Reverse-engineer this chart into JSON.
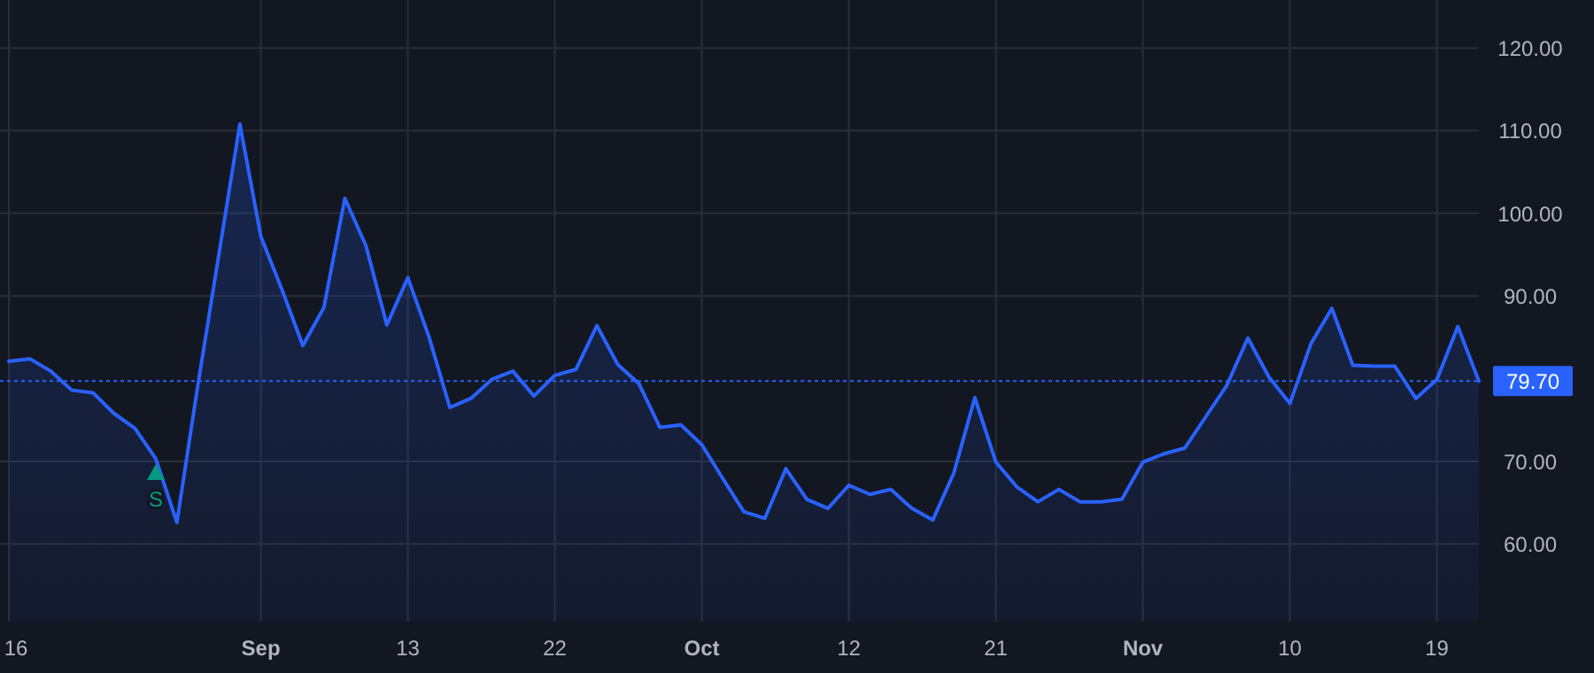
{
  "chart_data": {
    "type": "area",
    "categories": [
      "16",
      null,
      null,
      null,
      null,
      null,
      null,
      null,
      null,
      null,
      null,
      null,
      "Sep",
      null,
      null,
      null,
      null,
      null,
      null,
      "13",
      null,
      null,
      null,
      null,
      null,
      null,
      "22",
      null,
      null,
      null,
      null,
      null,
      null,
      "Oct",
      null,
      null,
      null,
      null,
      null,
      null,
      "12",
      null,
      null,
      null,
      null,
      null,
      null,
      "21",
      null,
      null,
      null,
      null,
      null,
      null,
      "Nov",
      null,
      null,
      null,
      null,
      null,
      null,
      "10",
      null,
      null,
      null,
      null,
      null,
      null,
      "19",
      null,
      null
    ],
    "series": [
      {
        "color": "#2962ff",
        "values": [
          82.1,
          82.4,
          80.9,
          78.6,
          78.3,
          75.8,
          74.0,
          70.3,
          62.6,
          79.2,
          95.0,
          110.8,
          97.2,
          90.8,
          84.0,
          88.6,
          101.8,
          96.1,
          86.5,
          92.2,
          85.1,
          76.5,
          77.6,
          79.9,
          80.9,
          77.9,
          80.4,
          81.1,
          86.4,
          81.7,
          79.4,
          74.1,
          74.4,
          72.0,
          67.9,
          63.9,
          63.1,
          69.1,
          65.4,
          64.3,
          67.1,
          66.0,
          66.6,
          64.3,
          62.9,
          68.6,
          77.7,
          69.9,
          66.9,
          65.1,
          66.6,
          65.1,
          65.1,
          65.4,
          69.9,
          70.9,
          71.6,
          75.4,
          79.2,
          84.9,
          80.2,
          77.0,
          84.2,
          88.5,
          81.6,
          81.5,
          81.5,
          77.6,
          79.9,
          86.3,
          79.7
        ]
      },
      {
        "name": "S",
        "type": "scatter",
        "marker": "triangle",
        "color": "#089981",
        "values": [
          null,
          null,
          null,
          null,
          null,
          null,
          null,
          68.6,
          null,
          null,
          null,
          null,
          null,
          null,
          null,
          null,
          null,
          null,
          null,
          null,
          null,
          null,
          null,
          null,
          null,
          null,
          null,
          null,
          null,
          null,
          null,
          null,
          null,
          null,
          null,
          null,
          null,
          null,
          null,
          null,
          null,
          null,
          null,
          null,
          null,
          null,
          null,
          null,
          null,
          null,
          null,
          null,
          null,
          null,
          null,
          null,
          null,
          null,
          null,
          null,
          null,
          null,
          null,
          null,
          null,
          null,
          null,
          null,
          null,
          null,
          null
        ]
      }
    ],
    "ylim": [
      50.6,
      125.8
    ],
    "yticks": [
      {
        "value": 60,
        "label": "60.00"
      },
      {
        "value": 70,
        "label": "70.00"
      },
      {
        "value": 90,
        "label": "90.00"
      },
      {
        "value": 100,
        "label": "100.00"
      },
      {
        "value": 110,
        "label": "110.00"
      },
      {
        "value": 120,
        "label": "120.00"
      }
    ],
    "grid": true,
    "ref_lines": [
      {
        "axis": "y",
        "value": 79.7,
        "label": "79.70",
        "color": "#2962ff",
        "line_style": "dotted"
      }
    ]
  }
}
